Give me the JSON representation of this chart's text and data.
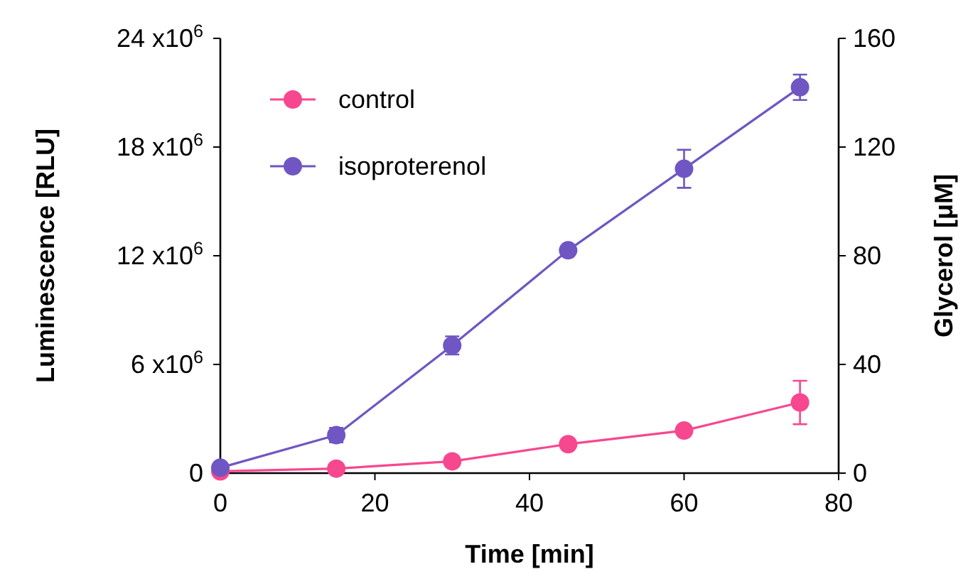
{
  "chart_data": {
    "type": "line",
    "xlabel": "Time [min]",
    "ylabel": "Luminescence [RLU]",
    "y2label": "Glycerol [μM]",
    "x": [
      0,
      15,
      30,
      45,
      60,
      75
    ],
    "series": [
      {
        "name": "control",
        "color": "#f7478e",
        "values": [
          100000,
          250000,
          650000,
          1600000,
          2350000,
          3900000
        ],
        "errors": [
          null,
          null,
          null,
          null,
          null,
          1200000
        ]
      },
      {
        "name": "isoproterenol",
        "color": "#6f56c2",
        "values": [
          300000,
          2100000,
          7050000,
          12300000,
          16800000,
          21300000
        ],
        "errors": [
          null,
          400000,
          500000,
          null,
          1050000,
          700000
        ]
      }
    ],
    "xlim": [
      0,
      80
    ],
    "xticks": [
      0,
      20,
      40,
      60,
      80
    ],
    "ylim": [
      0,
      24000000
    ],
    "yticks": [
      0,
      {
        "value": 6000000,
        "label": "6 x10$^{6}$"
      },
      {
        "value": 12000000,
        "label": "12 x10$^{6}$"
      },
      {
        "value": 18000000,
        "label": "18 x10$^{6}$"
      },
      {
        "value": 24000000,
        "label": "24 x10$^{6}$"
      }
    ],
    "y2lim": [
      0,
      160
    ],
    "y2ticks": [
      0,
      40,
      80,
      120,
      160
    ],
    "marker": "circle",
    "legend": "top left",
    "grid": false
  }
}
